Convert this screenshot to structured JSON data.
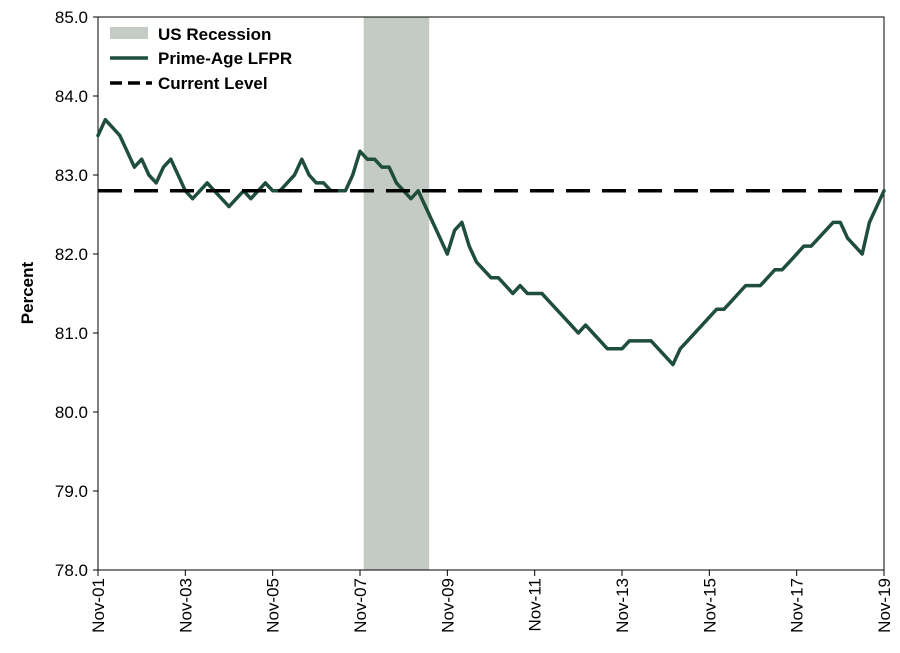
{
  "chart_data": {
    "type": "line",
    "title": "",
    "xlabel": "",
    "ylabel": "Percent",
    "ylim": [
      78.0,
      85.0
    ],
    "y_ticks": [
      "78.0",
      "79.0",
      "80.0",
      "81.0",
      "82.0",
      "83.0",
      "84.0",
      "85.0"
    ],
    "x_range": [
      "2001-11",
      "2019-11"
    ],
    "x_ticks": [
      {
        "date": "2001-11",
        "label": "Nov-01"
      },
      {
        "date": "2003-11",
        "label": "Nov-03"
      },
      {
        "date": "2005-11",
        "label": "Nov-05"
      },
      {
        "date": "2007-11",
        "label": "Nov-07"
      },
      {
        "date": "2009-11",
        "label": "Nov-09"
      },
      {
        "date": "2011-11",
        "label": "Nov-11"
      },
      {
        "date": "2013-11",
        "label": "Nov-13"
      },
      {
        "date": "2015-11",
        "label": "Nov-15"
      },
      {
        "date": "2017-11",
        "label": "Nov-17"
      },
      {
        "date": "2019-11",
        "label": "Nov-19"
      }
    ],
    "grid": false,
    "legend_position": "top-left",
    "legend": [
      {
        "label": "US Recession",
        "kind": "area"
      },
      {
        "label": "Prime-Age LFPR",
        "kind": "line"
      },
      {
        "label": "Current Level",
        "kind": "dashed"
      }
    ],
    "recession": {
      "label": "US Recession",
      "start": "2007-12",
      "end": "2009-06",
      "color": "#c3cbc4"
    },
    "current_level": {
      "label": "Current Level",
      "value": 82.8,
      "color": "#000000"
    },
    "series": [
      {
        "name": "Prime-Age LFPR",
        "color": "#1f4e3d",
        "x": [
          "2001-11",
          "2002-01",
          "2002-03",
          "2002-05",
          "2002-07",
          "2002-09",
          "2002-11",
          "2003-01",
          "2003-03",
          "2003-05",
          "2003-07",
          "2003-09",
          "2003-11",
          "2004-01",
          "2004-03",
          "2004-05",
          "2004-07",
          "2004-09",
          "2004-11",
          "2005-01",
          "2005-03",
          "2005-05",
          "2005-07",
          "2005-09",
          "2005-11",
          "2006-01",
          "2006-03",
          "2006-05",
          "2006-07",
          "2006-09",
          "2006-11",
          "2007-01",
          "2007-03",
          "2007-05",
          "2007-07",
          "2007-09",
          "2007-11",
          "2008-01",
          "2008-03",
          "2008-05",
          "2008-07",
          "2008-09",
          "2008-11",
          "2009-01",
          "2009-03",
          "2009-05",
          "2009-07",
          "2009-09",
          "2009-11",
          "2010-01",
          "2010-03",
          "2010-05",
          "2010-07",
          "2010-09",
          "2010-11",
          "2011-01",
          "2011-03",
          "2011-05",
          "2011-07",
          "2011-09",
          "2011-11",
          "2012-01",
          "2012-03",
          "2012-05",
          "2012-07",
          "2012-09",
          "2012-11",
          "2013-01",
          "2013-03",
          "2013-05",
          "2013-07",
          "2013-09",
          "2013-11",
          "2014-01",
          "2014-03",
          "2014-05",
          "2014-07",
          "2014-09",
          "2014-11",
          "2015-01",
          "2015-03",
          "2015-05",
          "2015-07",
          "2015-09",
          "2015-11",
          "2016-01",
          "2016-03",
          "2016-05",
          "2016-07",
          "2016-09",
          "2016-11",
          "2017-01",
          "2017-03",
          "2017-05",
          "2017-07",
          "2017-09",
          "2017-11",
          "2018-01",
          "2018-03",
          "2018-05",
          "2018-07",
          "2018-09",
          "2018-11",
          "2019-01",
          "2019-03",
          "2019-05",
          "2019-07",
          "2019-09",
          "2019-11"
        ],
        "values": [
          83.5,
          83.7,
          83.6,
          83.5,
          83.3,
          83.1,
          83.2,
          83.0,
          82.9,
          83.1,
          83.2,
          83.0,
          82.8,
          82.7,
          82.8,
          82.9,
          82.8,
          82.7,
          82.6,
          82.7,
          82.8,
          82.7,
          82.8,
          82.9,
          82.8,
          82.8,
          82.9,
          83.0,
          83.2,
          83.0,
          82.9,
          82.9,
          82.8,
          82.8,
          82.8,
          83.0,
          83.3,
          83.2,
          83.2,
          83.1,
          83.1,
          82.9,
          82.8,
          82.7,
          82.8,
          82.6,
          82.4,
          82.2,
          82.0,
          82.3,
          82.4,
          82.1,
          81.9,
          81.8,
          81.7,
          81.7,
          81.6,
          81.5,
          81.6,
          81.5,
          81.5,
          81.5,
          81.4,
          81.3,
          81.2,
          81.1,
          81.0,
          81.1,
          81.0,
          80.9,
          80.8,
          80.8,
          80.8,
          80.9,
          80.9,
          80.9,
          80.9,
          80.8,
          80.7,
          80.6,
          80.8,
          80.9,
          81.0,
          81.1,
          81.2,
          81.3,
          81.3,
          81.4,
          81.5,
          81.6,
          81.6,
          81.6,
          81.7,
          81.8,
          81.8,
          81.9,
          82.0,
          82.1,
          82.1,
          82.2,
          82.3,
          82.4,
          82.4,
          82.2,
          82.1,
          82.0,
          82.4,
          82.6,
          82.8
        ]
      }
    ]
  }
}
